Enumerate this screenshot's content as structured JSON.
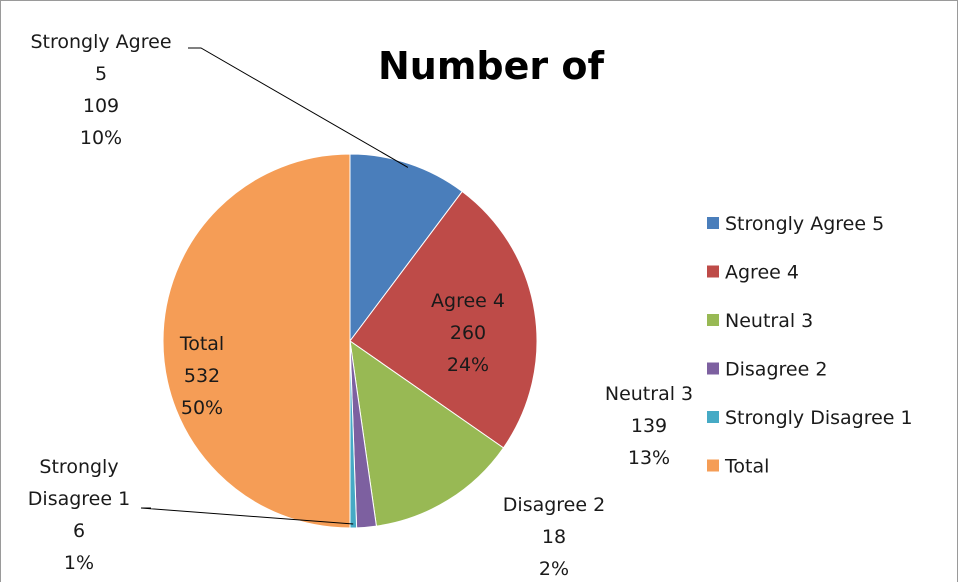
{
  "chart_data": {
    "type": "pie",
    "title": "Number of",
    "legend_position": "right",
    "categories": [
      "Strongly  Agree 5",
      "Agree  4",
      "Neutral  3",
      "Disagree  2",
      "Strongly  Disagree  1",
      "Total"
    ],
    "values": [
      109,
      260,
      139,
      18,
      6,
      532
    ],
    "percentages": [
      "10%",
      "24%",
      "13%",
      "2%",
      "1%",
      "50%"
    ],
    "colors": [
      "#4a7ebb",
      "#be4b48",
      "#98b954",
      "#7d60a0",
      "#46aac5",
      "#f59d56"
    ],
    "data_labels": [
      {
        "lines": [
          "Strongly  Agree",
          "5",
          "109",
          "10%"
        ]
      },
      {
        "lines": [
          "Agree  4",
          "260",
          "24%"
        ]
      },
      {
        "lines": [
          "Neutral  3",
          "139",
          "13%"
        ]
      },
      {
        "lines": [
          "Disagree  2",
          "18",
          "2%"
        ]
      },
      {
        "lines": [
          "Strongly",
          "Disagree  1",
          "6",
          "1%"
        ]
      },
      {
        "lines": [
          "Total",
          "532",
          "50%"
        ]
      }
    ]
  }
}
